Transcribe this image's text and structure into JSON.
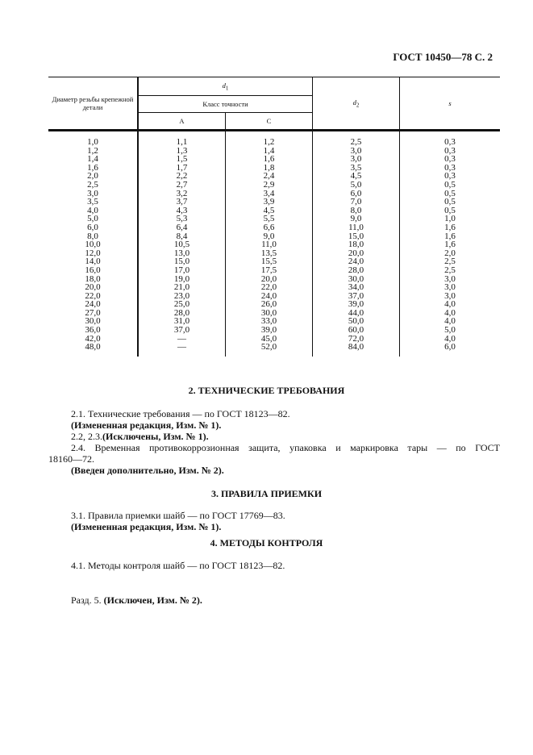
{
  "header": "ГОСТ 10450—78 С. 2",
  "table": {
    "col_diam": "Диаметр резьбы крепежной детали",
    "col_d1": "d",
    "col_d1_sub": "1",
    "col_class": "Класс точности",
    "col_a": "А",
    "col_c": "С",
    "col_d2": "d",
    "col_d2_sub": "2",
    "col_s": "s",
    "rows": [
      [
        "1,0",
        "1,1",
        "1,2",
        "2,5",
        "0,3"
      ],
      [
        "1,2",
        "1,3",
        "1,4",
        "3,0",
        "0,3"
      ],
      [
        "1,4",
        "1,5",
        "1,6",
        "3,0",
        "0,3"
      ],
      [
        "1,6",
        "1,7",
        "1,8",
        "3,5",
        "0,3"
      ],
      [
        "2,0",
        "2,2",
        "2,4",
        "4,5",
        "0,3"
      ],
      [
        "2,5",
        "2,7",
        "2,9",
        "5,0",
        "0,5"
      ],
      [
        "3,0",
        "3,2",
        "3,4",
        "6,0",
        "0,5"
      ],
      [
        "3,5",
        "3,7",
        "3,9",
        "7,0",
        "0,5"
      ],
      [
        "4,0",
        "4,3",
        "4,5",
        "8,0",
        "0,5"
      ],
      [
        "5,0",
        "5,3",
        "5,5",
        "9,0",
        "1,0"
      ],
      [
        "6,0",
        "6,4",
        "6,6",
        "11,0",
        "1,6"
      ],
      [
        "8,0",
        "8,4",
        "9,0",
        "15,0",
        "1,6"
      ],
      [
        "10,0",
        "10,5",
        "11,0",
        "18,0",
        "1,6"
      ],
      [
        "12,0",
        "13,0",
        "13,5",
        "20,0",
        "2,0"
      ],
      [
        "14,0",
        "15,0",
        "15,5",
        "24,0",
        "2,5"
      ],
      [
        "16,0",
        "17,0",
        "17,5",
        "28,0",
        "2,5"
      ],
      [
        "18,0",
        "19,0",
        "20,0",
        "30,0",
        "3,0"
      ],
      [
        "20,0",
        "21,0",
        "22,0",
        "34,0",
        "3,0"
      ],
      [
        "22,0",
        "23,0",
        "24,0",
        "37,0",
        "3,0"
      ],
      [
        "24,0",
        "25,0",
        "26,0",
        "39,0",
        "4,0"
      ],
      [
        "27,0",
        "28,0",
        "30,0",
        "44,0",
        "4,0"
      ],
      [
        "30,0",
        "31,0",
        "33,0",
        "50,0",
        "4,0"
      ],
      [
        "36,0",
        "37,0",
        "39,0",
        "60,0",
        "5,0"
      ],
      [
        "42,0",
        "—",
        "45,0",
        "72,0",
        "4,0"
      ],
      [
        "48,0",
        "—",
        "52,0",
        "84,0",
        "6,0"
      ]
    ]
  },
  "s2": {
    "title": "2. ТЕХНИЧЕСКИЕ ТРЕБОВАНИЯ",
    "p1": "2.1. Технические требования — по ГОСТ 18123—82.",
    "p1b": "(Измененная редакция, Изм. № 1).",
    "p2a": "2.2, 2.3.",
    "p2b": "(Исключены, Изм. № 1).",
    "p3a": "2.4. Временная противокоррозионная защита, упаковка и маркировка тары — по ГОСТ",
    "p3b": "18160—72.",
    "p3c": "(Введен дополнительно, Изм. № 2)."
  },
  "s3": {
    "title": "3. ПРАВИЛА ПРИЕМКИ",
    "p1": "3.1. Правила приемки шайб — по ГОСТ 17769—83.",
    "p1b": "(Измененная редакция, Изм. № 1)."
  },
  "s4": {
    "title": "4. МЕТОДЫ КОНТРОЛЯ",
    "p1": "4.1. Методы контроля шайб — по ГОСТ 18123—82."
  },
  "s5": {
    "a": "Разд. 5.",
    "b": "(Исключен, Изм. № 2)."
  }
}
